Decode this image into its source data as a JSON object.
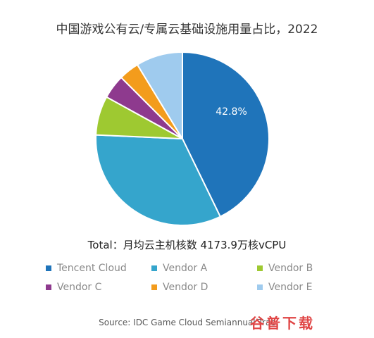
{
  "chart_data": {
    "type": "pie",
    "title": "中国游戏公有云/专属云基础设施用量占比，2022",
    "subtitle": "Total：月均云主机核数 4173.9万核vCPU",
    "categories": [
      "Tencent Cloud",
      "Vendor A",
      "Vendor B",
      "Vendor C",
      "Vendor D",
      "Vendor E"
    ],
    "values": [
      42.8,
      32.9,
      7.3,
      4.5,
      3.8,
      8.7
    ],
    "colors": [
      "#1f74ba",
      "#35a5cc",
      "#9ec931",
      "#8e3a8e",
      "#f39c1c",
      "#9fcbee"
    ],
    "data_labels": [
      "42.8%",
      "",
      "",
      "",
      "",
      ""
    ],
    "label_color": "#ffffff",
    "legend_position": "bottom",
    "source": "Source: IDC Game Cloud Semiannual Trac",
    "watermark": "谷普下载"
  }
}
